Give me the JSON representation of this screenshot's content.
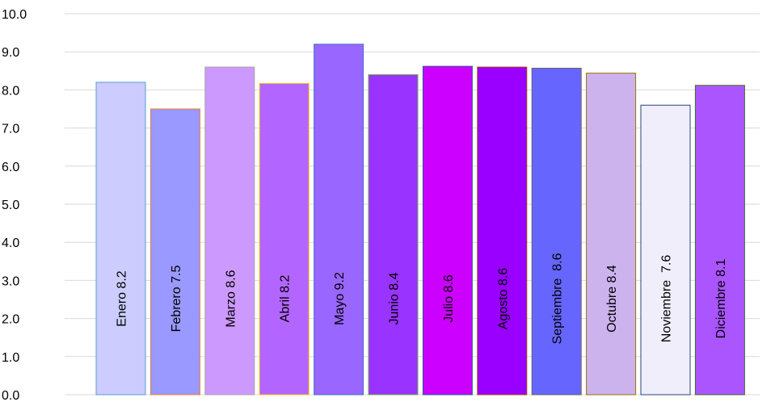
{
  "chart_data": {
    "type": "bar",
    "title": "",
    "xlabel": "",
    "ylabel": "",
    "ylim": [
      0,
      10
    ],
    "yticks": [
      "0.0",
      "1.0",
      "2.0",
      "3.0",
      "4.0",
      "5.0",
      "6.0",
      "7.0",
      "8.0",
      "9.0",
      "10.0"
    ],
    "grid": true,
    "bars": [
      {
        "label": "Enero 8.2",
        "value": 8.2,
        "fill": "#ccccff",
        "border": "#5b9bd5"
      },
      {
        "label": "Febrero 7.5",
        "value": 7.5,
        "fill": "#9999ff",
        "border": "#ed7d31"
      },
      {
        "label": "Marzo 8.6",
        "value": 8.6,
        "fill": "#cc99ff",
        "border": "#a5a5a5"
      },
      {
        "label": "Abril 8.2",
        "value": 8.17,
        "fill": "#b366ff",
        "border": "#ffc000"
      },
      {
        "label": "Mayo 9.2",
        "value": 9.2,
        "fill": "#9966ff",
        "border": "#4472c4"
      },
      {
        "label": "Junio 8.4",
        "value": 8.4,
        "fill": "#9933ff",
        "border": "#70ad47"
      },
      {
        "label": "Julio 8.6",
        "value": 8.62,
        "fill": "#cc00ff",
        "border": "#255e91"
      },
      {
        "label": "Agosto 8.6",
        "value": 8.6,
        "fill": "#9900ff",
        "border": "#9e480e"
      },
      {
        "label": "Septiembre  8.6",
        "value": 8.57,
        "fill": "#6666ff",
        "border": "#636363"
      },
      {
        "label": "Octubre 8.4",
        "value": 8.44,
        "fill": "#ccb3ee",
        "border": "#997300"
      },
      {
        "label": "Noviembre  7.6",
        "value": 7.6,
        "fill": "#f0eefb",
        "border": "#264478"
      },
      {
        "label": "Diciembre 8.1",
        "value": 8.12,
        "fill": "#aa55ff",
        "border": "#43682b"
      }
    ]
  }
}
